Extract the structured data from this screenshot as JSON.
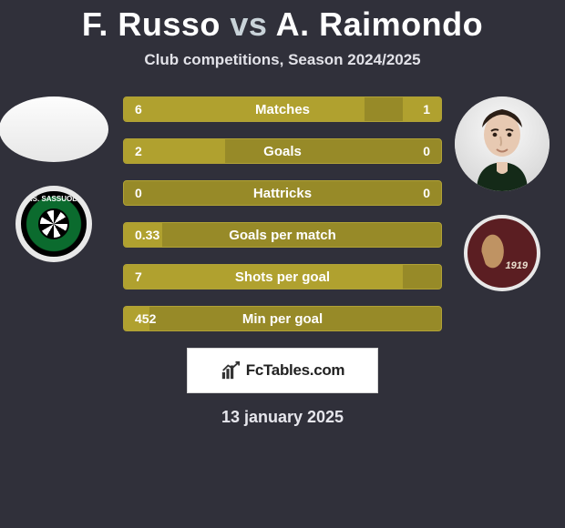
{
  "title": {
    "player1": "F. Russo",
    "vs": "vs",
    "player2": "A. Raimondo"
  },
  "subtitle": "Club competitions, Season 2024/2025",
  "rows": [
    {
      "label": "Matches",
      "left": "6",
      "right": "1",
      "leftPct": 76,
      "rightPct": 12
    },
    {
      "label": "Goals",
      "left": "2",
      "right": "0",
      "leftPct": 32,
      "rightPct": 0
    },
    {
      "label": "Hattricks",
      "left": "0",
      "right": "0",
      "leftPct": 0,
      "rightPct": 0
    },
    {
      "label": "Goals per match",
      "left": "0.33",
      "right": "",
      "leftPct": 12,
      "rightPct": 0
    },
    {
      "label": "Shots per goal",
      "left": "7",
      "right": "",
      "leftPct": 88,
      "rightPct": 0
    },
    {
      "label": "Min per goal",
      "left": "452",
      "right": "",
      "leftPct": 8,
      "rightPct": 0
    }
  ],
  "crestLeft": {
    "text": "U.S. SASSUOLO"
  },
  "crestRight": {
    "year": "1919"
  },
  "brand": "FcTables.com",
  "date": "13 january 2025",
  "style": {
    "bg": "#30303a",
    "barBase": "#978a28",
    "barFill": "#b0a12f",
    "barBorder": "#b1a236",
    "textLight": "#ffffff"
  }
}
